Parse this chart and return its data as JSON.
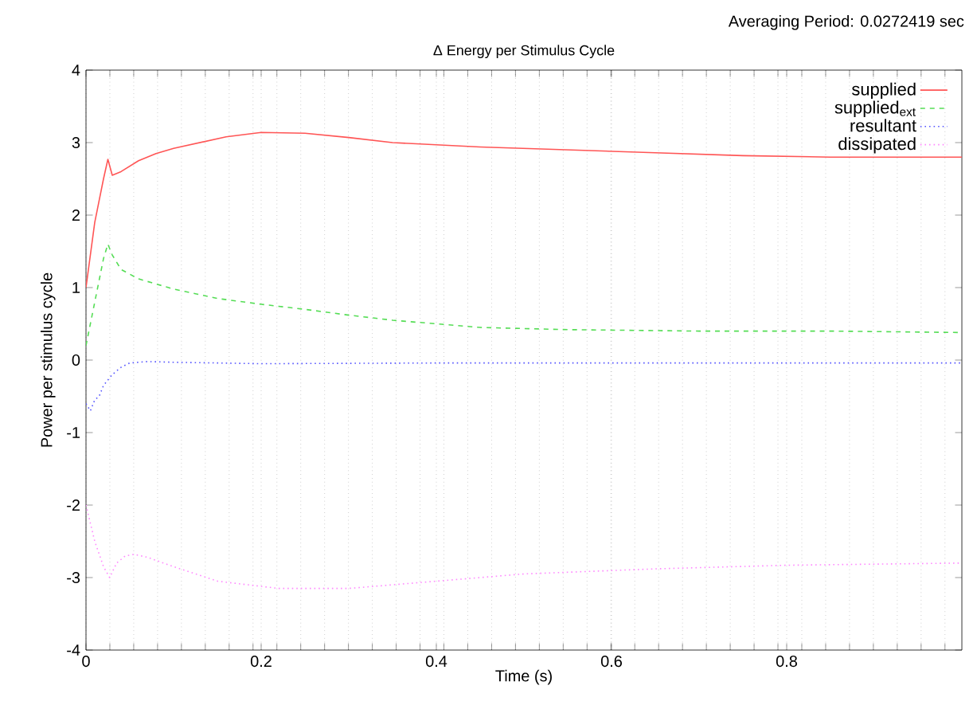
{
  "chart_data": {
    "type": "line",
    "title": "Δ Energy per Stimulus Cycle",
    "annotations": [
      "Averaging Period: 0.0272419 sec"
    ],
    "xlabel": "Time (s)",
    "ylabel": "Power per stimulus cycle",
    "xlim": [
      0,
      1
    ],
    "ylim": [
      -4,
      4
    ],
    "xticks": [
      0,
      0.2,
      0.4,
      0.6,
      0.8,
      {
        "value": 0.0272419,
        "label": null
      },
      {
        "value": 0.0544838,
        "label": null
      },
      {
        "value": 0.0817257,
        "label": null
      },
      {
        "value": 0.1089676,
        "label": null
      },
      {
        "value": 0.1362095,
        "label": null
      },
      {
        "value": 0.1634514,
        "label": null
      },
      {
        "value": 0.1906933,
        "label": null
      },
      {
        "value": 0.2179352,
        "label": null
      },
      {
        "value": 0.2451771,
        "label": null
      },
      {
        "value": 0.272419,
        "label": null
      },
      {
        "value": 0.2996609,
        "label": null
      },
      {
        "value": 0.3269028,
        "label": null
      },
      {
        "value": 0.3541447,
        "label": null
      },
      {
        "value": 0.3813866,
        "label": null
      },
      {
        "value": 0.4086285,
        "label": null
      },
      {
        "value": 0.4358704,
        "label": null
      },
      {
        "value": 0.4631123,
        "label": null
      },
      {
        "value": 0.4903542,
        "label": null
      },
      {
        "value": 0.5175961,
        "label": null
      },
      {
        "value": 0.544838,
        "label": null
      },
      {
        "value": 0.5720799,
        "label": null
      },
      {
        "value": 0.5993218,
        "label": null
      },
      {
        "value": 0.6265637,
        "label": null
      },
      {
        "value": 0.6538056,
        "label": null
      },
      {
        "value": 0.6810475,
        "label": null
      },
      {
        "value": 0.7082894,
        "label": null
      },
      {
        "value": 0.7355313,
        "label": null
      },
      {
        "value": 0.7627732,
        "label": null
      },
      {
        "value": 0.7900151,
        "label": null
      },
      {
        "value": 0.817257,
        "label": null
      },
      {
        "value": 0.8444989,
        "label": null
      },
      {
        "value": 0.8717408,
        "label": null
      },
      {
        "value": 0.8989827,
        "label": null
      },
      {
        "value": 0.9262246,
        "label": null
      },
      {
        "value": 0.9534665,
        "label": null
      },
      {
        "value": 0.9807084,
        "label": null
      }
    ],
    "yticks": [
      -4,
      -3,
      -2,
      -1,
      0,
      1,
      2,
      3,
      4
    ],
    "grid": "x",
    "legend": "top right",
    "marker": "none",
    "series": [
      {
        "name": "supplied",
        "color": "#ff5555",
        "line_style": "solid",
        "x": [
          0,
          0.01,
          0.02,
          0.025,
          0.03,
          0.04,
          0.06,
          0.08,
          0.1,
          0.13,
          0.16,
          0.2,
          0.25,
          0.3,
          0.35,
          0.45,
          0.55,
          0.65,
          0.75,
          0.85,
          1.0
        ],
        "values": [
          1.0,
          1.9,
          2.5,
          2.77,
          2.55,
          2.6,
          2.75,
          2.85,
          2.92,
          3.0,
          3.08,
          3.14,
          3.13,
          3.07,
          3.0,
          2.94,
          2.9,
          2.86,
          2.82,
          2.8,
          2.8
        ]
      },
      {
        "name": "supplied$_{ext}$",
        "color": "#55dd55",
        "line_style": "dashed",
        "x": [
          0,
          0.01,
          0.02,
          0.025,
          0.03,
          0.04,
          0.06,
          0.1,
          0.15,
          0.2,
          0.25,
          0.3,
          0.35,
          0.4,
          0.45,
          0.55,
          0.7,
          0.85,
          1.0
        ],
        "values": [
          0.2,
          0.8,
          1.4,
          1.6,
          1.45,
          1.25,
          1.12,
          0.98,
          0.85,
          0.77,
          0.7,
          0.62,
          0.55,
          0.5,
          0.45,
          0.42,
          0.4,
          0.4,
          0.38
        ]
      },
      {
        "name": "resultant",
        "color": "#5555ff",
        "line_style": "dotted",
        "x": [
          0,
          0.005,
          0.01,
          0.015,
          0.02,
          0.03,
          0.04,
          0.05,
          0.07,
          0.1,
          0.2,
          0.4,
          0.6,
          0.8,
          1.0
        ],
        "values": [
          -0.6,
          -0.7,
          -0.55,
          -0.5,
          -0.35,
          -0.2,
          -0.1,
          -0.04,
          -0.02,
          -0.03,
          -0.05,
          -0.04,
          -0.04,
          -0.04,
          -0.04
        ]
      },
      {
        "name": "dissipated",
        "color": "#ff88ff",
        "line_style": "dotted",
        "x": [
          0,
          0.01,
          0.02,
          0.027,
          0.035,
          0.045,
          0.055,
          0.07,
          0.1,
          0.15,
          0.22,
          0.3,
          0.4,
          0.5,
          0.65,
          0.8,
          1.0
        ],
        "values": [
          -2.0,
          -2.5,
          -2.85,
          -3.0,
          -2.8,
          -2.7,
          -2.68,
          -2.72,
          -2.85,
          -3.05,
          -3.15,
          -3.15,
          -3.05,
          -2.95,
          -2.88,
          -2.83,
          -2.8
        ]
      }
    ]
  }
}
